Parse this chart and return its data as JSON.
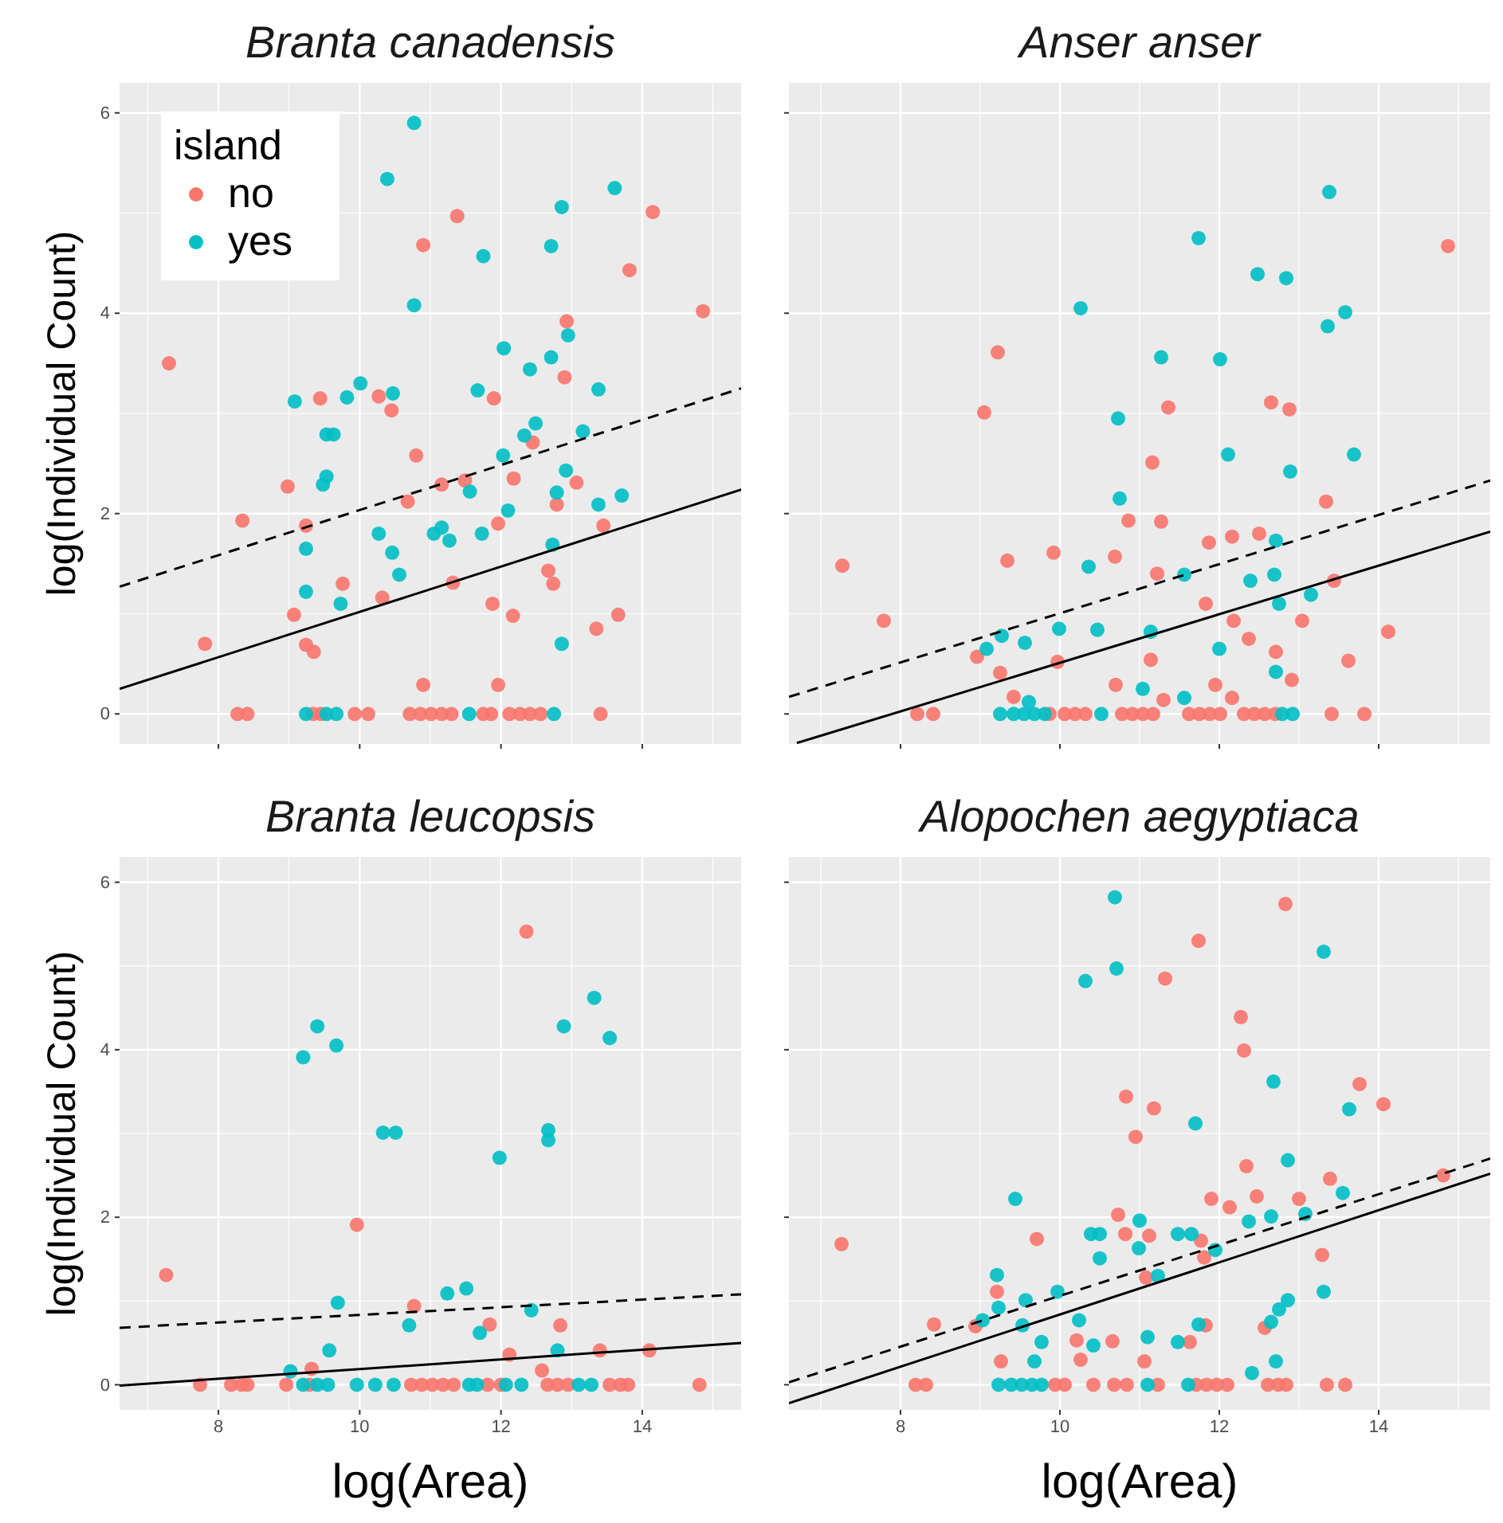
{
  "chart_data": [
    {
      "type": "scatter",
      "title": "Branta canadensis",
      "ylabel": "log(Individual Count)",
      "xlim": [
        6.6,
        15.4
      ],
      "ylim": [
        -0.3,
        6.3
      ],
      "xticks": [
        8,
        10,
        12,
        14
      ],
      "yticks": [
        0,
        2,
        4,
        6
      ],
      "tick_labels": "y",
      "grid": true,
      "marker": "circle",
      "legend": "top left",
      "legend_title": "island",
      "series": [
        {
          "name": "no",
          "color": "#f8766d",
          "x": [
            7.3,
            7.81,
            8.34,
            8.98,
            9.07,
            9.24,
            9.24,
            9.35,
            9.44,
            9.76,
            10.27,
            10.32,
            10.45,
            10.8,
            10.68,
            10.9,
            10.9,
            11.16,
            11.32,
            11.38,
            11.49,
            11.88,
            11.9,
            11.96,
            11.96,
            12.17,
            12.18,
            12.45,
            12.67,
            12.74,
            12.79,
            12.9,
            12.93,
            13.07,
            13.35,
            13.45,
            13.66,
            13.82,
            14.15,
            14.86,
            8.27,
            8.41,
            9.34,
            9.45,
            9.93,
            10.12,
            10.71,
            10.86,
            11.01,
            11.16,
            11.3,
            11.75,
            11.86,
            12.12,
            12.27,
            12.41,
            12.56,
            13.41
          ],
          "values": [
            3.5,
            0.7,
            1.93,
            2.27,
            0.99,
            1.88,
            0.69,
            0.62,
            3.15,
            1.3,
            3.17,
            1.16,
            3.03,
            2.58,
            2.12,
            4.68,
            0.29,
            2.29,
            1.31,
            4.97,
            2.33,
            1.1,
            3.15,
            1.9,
            0.29,
            0.98,
            2.35,
            2.71,
            1.43,
            1.3,
            2.09,
            3.36,
            3.92,
            2.31,
            0.85,
            1.88,
            0.99,
            4.43,
            5.01,
            4.02,
            0,
            0,
            0,
            0,
            0,
            0,
            0,
            0,
            0,
            0,
            0,
            0,
            0,
            0,
            0,
            0,
            0,
            0
          ]
        },
        {
          "name": "yes",
          "color": "#00bfc4",
          "x": [
            10.77,
            10.39,
            13.61,
            12.86,
            12.71,
            11.75,
            10.77,
            12.04,
            12.95,
            12.71,
            12.41,
            10.01,
            10.47,
            9.82,
            9.08,
            11.67,
            13.38,
            9.53,
            9.63,
            12.49,
            13.16,
            12.33,
            12.03,
            9.53,
            9.48,
            12.92,
            11.56,
            12.79,
            13.38,
            13.71,
            12.1,
            10.27,
            11.16,
            11.05,
            11.27,
            11.73,
            10.46,
            9.24,
            10.56,
            12.73,
            9.24,
            9.73,
            12.86,
            9.24,
            9.53,
            9.67,
            11.55,
            12.75
          ],
          "values": [
            5.9,
            5.34,
            5.25,
            5.06,
            4.67,
            4.57,
            4.08,
            3.65,
            3.78,
            3.56,
            3.44,
            3.3,
            3.2,
            3.16,
            3.12,
            3.23,
            3.24,
            2.79,
            2.79,
            2.9,
            2.82,
            2.78,
            2.58,
            2.37,
            2.29,
            2.43,
            2.22,
            2.21,
            2.09,
            2.18,
            2.03,
            1.8,
            1.86,
            1.8,
            1.73,
            1.8,
            1.61,
            1.65,
            1.39,
            1.69,
            1.22,
            1.1,
            0.7,
            0,
            0,
            0,
            0,
            0
          ]
        },
        {
          "type": "line",
          "color": "#000000",
          "line_style": "solid",
          "marker": "none",
          "x": [
            6.6,
            15.4
          ],
          "values": [
            0.25,
            2.24
          ]
        },
        {
          "type": "line",
          "color": "#000000",
          "line_style": "dashed",
          "marker": "none",
          "x": [
            6.6,
            15.4
          ],
          "values": [
            1.27,
            3.25
          ]
        }
      ]
    },
    {
      "type": "scatter",
      "title": "Anser anser",
      "xlim": [
        6.6,
        15.4
      ],
      "ylim": [
        -0.3,
        6.3
      ],
      "xticks": [
        8,
        10,
        12,
        14
      ],
      "yticks": [
        0,
        2,
        4,
        6
      ],
      "tick_labels": false,
      "grid": true,
      "marker": "circle",
      "series": [
        {
          "color": "#f8766d",
          "x": [
            7.27,
            7.79,
            9.05,
            9.22,
            9.34,
            8.96,
            9.25,
            9.42,
            9.92,
            9.97,
            10.69,
            10.7,
            10.86,
            11.16,
            11.14,
            11.22,
            11.27,
            11.36,
            11.3,
            11.83,
            11.87,
            11.95,
            12.16,
            12.18,
            12.16,
            12.37,
            12.5,
            12.65,
            12.88,
            12.71,
            12.91,
            13.04,
            13.34,
            13.44,
            13.62,
            14.12,
            14.87,
            8.21,
            8.41,
            9.87,
            10.06,
            10.19,
            10.32,
            10.78,
            10.91,
            11.04,
            11.17,
            11.62,
            11.75,
            11.88,
            12.01,
            12.31,
            12.44,
            12.57,
            12.7,
            13.41,
            13.82
          ],
          "values": [
            1.48,
            0.93,
            3.01,
            3.61,
            1.53,
            0.57,
            0.41,
            0.17,
            1.61,
            0.52,
            1.57,
            0.29,
            1.93,
            2.51,
            0.54,
            1.4,
            1.92,
            3.06,
            0.14,
            1.1,
            1.71,
            0.29,
            1.77,
            0.93,
            0.16,
            0.75,
            1.8,
            3.11,
            3.04,
            0.62,
            0.34,
            0.93,
            2.12,
            1.33,
            0.53,
            0.82,
            4.67,
            0,
            0,
            0,
            0,
            0,
            0,
            0,
            0,
            0,
            0,
            0,
            0,
            0,
            0,
            0,
            0,
            0,
            0,
            0,
            0
          ]
        },
        {
          "color": "#00bfc4",
          "x": [
            13.38,
            11.74,
            12.48,
            12.84,
            13.58,
            13.36,
            10.26,
            11.27,
            12.01,
            10.73,
            12.11,
            13.69,
            12.89,
            10.75,
            12.71,
            10.36,
            11.56,
            12.69,
            12.39,
            12.75,
            13.15,
            9.99,
            10.47,
            11.14,
            9.27,
            9.08,
            9.56,
            12.0,
            12.71,
            11.04,
            11.56,
            9.61,
            9.25,
            9.42,
            9.55,
            9.68,
            9.81,
            10.52,
            12.79,
            12.92
          ],
          "values": [
            5.21,
            4.75,
            4.39,
            4.35,
            4.01,
            3.87,
            4.05,
            3.56,
            3.54,
            2.95,
            2.59,
            2.59,
            2.42,
            2.15,
            1.73,
            1.47,
            1.39,
            1.39,
            1.33,
            1.1,
            1.19,
            0.85,
            0.84,
            0.82,
            0.78,
            0.65,
            0.71,
            0.65,
            0.42,
            0.25,
            0.16,
            0.12,
            0,
            0,
            0,
            0,
            0,
            0,
            0,
            0
          ]
        },
        {
          "type": "line",
          "color": "#000000",
          "line_style": "solid",
          "marker": "none",
          "x": [
            6.7,
            15.4
          ],
          "values": [
            -0.29,
            1.82
          ]
        },
        {
          "type": "line",
          "color": "#000000",
          "line_style": "dashed",
          "marker": "none",
          "x": [
            6.6,
            15.4
          ],
          "values": [
            0.17,
            2.33
          ]
        }
      ]
    },
    {
      "type": "scatter",
      "title": "Branta leucopsis",
      "xlabel": "log(Area)",
      "ylabel": "log(Individual Count)",
      "xlim": [
        6.6,
        15.4
      ],
      "ylim": [
        -0.3,
        6.3
      ],
      "xticks": [
        8,
        10,
        12,
        14
      ],
      "yticks": [
        0,
        2,
        4,
        6
      ],
      "grid": true,
      "marker": "circle",
      "series": [
        {
          "color": "#f8766d",
          "x": [
            7.26,
            12.36,
            9.96,
            10.77,
            11.84,
            12.84,
            12.12,
            13.4,
            14.1,
            9.32,
            12.58,
            7.74,
            8.18,
            8.33,
            8.41,
            8.96,
            9.29,
            10.73,
            10.88,
            11.03,
            11.18,
            11.33,
            11.81,
            12.0,
            12.66,
            12.8,
            12.95,
            13.54,
            13.69,
            13.8,
            14.81
          ],
          "values": [
            1.31,
            5.41,
            1.91,
            0.94,
            0.72,
            0.71,
            0.36,
            0.41,
            0.41,
            0.19,
            0.17,
            0,
            0,
            0,
            0,
            0,
            0,
            0,
            0,
            0,
            0,
            0,
            0,
            0,
            0,
            0,
            0,
            0,
            0,
            0,
            0
          ]
        },
        {
          "color": "#00bfc4",
          "x": [
            13.32,
            9.4,
            12.89,
            13.54,
            9.67,
            9.2,
            10.33,
            10.51,
            12.67,
            12.67,
            11.98,
            11.51,
            11.24,
            9.69,
            12.43,
            10.7,
            11.7,
            9.57,
            12.8,
            9.02,
            9.2,
            9.4,
            9.55,
            9.96,
            10.22,
            10.48,
            11.55,
            11.66,
            12.07,
            12.29,
            13.1,
            13.28
          ],
          "values": [
            4.62,
            4.28,
            4.28,
            4.14,
            4.05,
            3.91,
            3.01,
            3.01,
            3.04,
            2.92,
            2.71,
            1.15,
            1.09,
            0.98,
            0.89,
            0.71,
            0.62,
            0.41,
            0.41,
            0.16,
            0,
            0,
            0,
            0,
            0,
            0,
            0,
            0,
            0,
            0,
            0,
            0
          ]
        },
        {
          "type": "line",
          "color": "#000000",
          "line_style": "solid",
          "marker": "none",
          "x": [
            6.6,
            15.4
          ],
          "values": [
            -0.01,
            0.5
          ]
        },
        {
          "type": "line",
          "color": "#000000",
          "line_style": "dashed",
          "marker": "none",
          "x": [
            6.6,
            15.4
          ],
          "values": [
            0.68,
            1.08
          ]
        }
      ]
    },
    {
      "type": "scatter",
      "title": "Alopochen aegyptiaca",
      "xlabel": "log(Area)",
      "xlim": [
        6.6,
        15.4
      ],
      "ylim": [
        -0.3,
        6.3
      ],
      "xticks": [
        8,
        10,
        12,
        14
      ],
      "yticks": [
        0,
        2,
        4,
        6
      ],
      "tick_labels": "x",
      "grid": true,
      "marker": "circle",
      "series": [
        {
          "color": "#f8766d",
          "x": [
            7.26,
            8.42,
            12.83,
            11.74,
            11.32,
            12.27,
            12.31,
            13.76,
            14.06,
            10.83,
            11.18,
            10.95,
            12.34,
            13.39,
            12.47,
            13.0,
            11.9,
            12.13,
            10.73,
            10.82,
            11.12,
            9.71,
            11.77,
            11.81,
            13.29,
            14.81,
            11.08,
            9.21,
            8.94,
            10.21,
            10.66,
            11.63,
            11.83,
            12.57,
            9.26,
            10.26,
            11.06,
            8.19,
            8.32,
            9.94,
            10.06,
            10.42,
            10.68,
            10.84,
            11.23,
            11.71,
            11.84,
            11.97,
            12.1,
            12.61,
            12.74,
            12.84,
            13.35,
            13.58
          ],
          "values": [
            1.68,
            0.72,
            5.74,
            5.3,
            4.85,
            4.39,
            3.99,
            3.59,
            3.35,
            3.44,
            3.3,
            2.96,
            2.61,
            2.46,
            2.25,
            2.22,
            2.22,
            2.12,
            2.03,
            1.8,
            1.78,
            1.74,
            1.72,
            1.52,
            1.55,
            2.5,
            1.28,
            1.11,
            0.7,
            0.53,
            0.52,
            0.51,
            0.71,
            0.68,
            0.28,
            0.3,
            0.28,
            0,
            0,
            0,
            0,
            0,
            0,
            0,
            0,
            0,
            0,
            0,
            0,
            0,
            0,
            0,
            0,
            0
          ]
        },
        {
          "color": "#00bfc4",
          "x": [
            10.69,
            10.71,
            10.32,
            13.31,
            12.68,
            13.63,
            11.7,
            12.86,
            13.55,
            9.44,
            13.08,
            11.0,
            12.37,
            12.65,
            10.39,
            10.5,
            11.48,
            11.65,
            10.99,
            11.95,
            10.5,
            9.21,
            11.23,
            13.31,
            9.97,
            9.57,
            12.86,
            9.23,
            9.03,
            10.24,
            12.75,
            12.65,
            11.74,
            9.53,
            9.77,
            10.42,
            11.1,
            11.48,
            9.68,
            12.71,
            12.41,
            9.23,
            9.39,
            9.52,
            9.65,
            9.77,
            11.1,
            11.61
          ],
          "values": [
            5.82,
            4.97,
            4.82,
            5.17,
            3.62,
            3.29,
            3.12,
            2.68,
            2.29,
            2.22,
            2.04,
            1.96,
            1.95,
            2.01,
            1.8,
            1.8,
            1.8,
            1.8,
            1.63,
            1.61,
            1.51,
            1.31,
            1.3,
            1.11,
            1.11,
            1.01,
            1.01,
            0.92,
            0.77,
            0.77,
            0.9,
            0.75,
            0.72,
            0.71,
            0.51,
            0.47,
            0.57,
            0.51,
            0.28,
            0.28,
            0.14,
            0,
            0,
            0,
            0,
            0,
            0,
            0
          ]
        },
        {
          "type": "line",
          "color": "#000000",
          "line_style": "solid",
          "marker": "none",
          "x": [
            6.6,
            15.4
          ],
          "values": [
            -0.22,
            2.52
          ]
        },
        {
          "type": "line",
          "color": "#000000",
          "line_style": "dashed",
          "marker": "none",
          "x": [
            6.6,
            15.4
          ],
          "values": [
            0.03,
            2.7
          ]
        }
      ]
    }
  ]
}
